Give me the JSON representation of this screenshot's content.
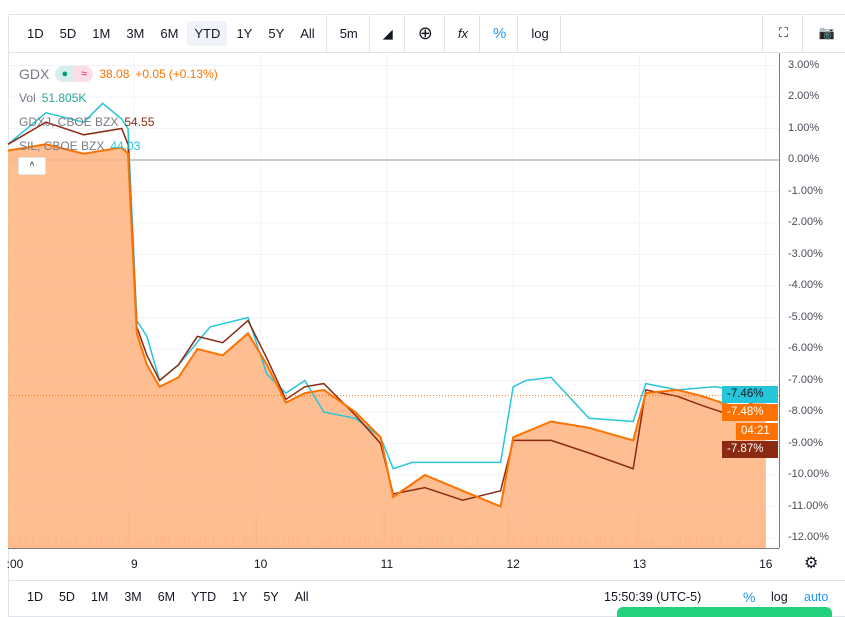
{
  "toolbar": {
    "ranges": [
      "1D",
      "5D",
      "1M",
      "3M",
      "6M",
      "YTD",
      "1Y",
      "5Y",
      "All"
    ],
    "active_range": "YTD",
    "interval": "5m",
    "chart_type_icon": "area-chart-icon",
    "compare_icon": "add-circle-icon",
    "indicators_icon": "fx-icon",
    "percent_label": "%",
    "log_label": "log",
    "fullscreen_icon": "fullscreen-icon",
    "snapshot_icon": "camera-icon"
  },
  "legend": {
    "symbol": "GDX",
    "price": "38.08",
    "change": "+0.05",
    "change_pct": "(+0.13%)",
    "vol_label": "Vol",
    "vol_value": "51.805K",
    "compare": [
      {
        "name": "GDXJ, CBOE BZX",
        "value": "54.55",
        "color": "#8b2a10"
      },
      {
        "name": "SIL, CBOE BZX",
        "value": "44.03",
        "color": "#26c6da"
      }
    ]
  },
  "colors": {
    "gdx": "#ff7200",
    "gdxj": "#8b2a10",
    "sil": "#26c6da",
    "area": "#ffb27f"
  },
  "chart_data": {
    "type": "line",
    "y_axis": {
      "unit": "%",
      "ticks": [
        "3.00%",
        "2.00%",
        "1.00%",
        "0.00%",
        "-1.00%",
        "-2.00%",
        "-3.00%",
        "-4.00%",
        "-5.00%",
        "-6.00%",
        "-7.00%",
        "-8.00%",
        "-9.00%",
        "-10.00%",
        "-11.00%",
        "-12.00%"
      ],
      "range": [
        -12.5,
        3.2
      ]
    },
    "x_axis": {
      "ticks": [
        ":00",
        "9",
        "10",
        "11",
        "12",
        "13",
        "16"
      ]
    },
    "series": [
      {
        "name": "GDX",
        "x": [
          0,
          0.3,
          0.6,
          0.9,
          0.95,
          1.02,
          1.1,
          1.2,
          1.35,
          1.5,
          1.7,
          1.9,
          2.05,
          2.2,
          2.35,
          2.5,
          2.75,
          2.95,
          3.05,
          3.3,
          3.6,
          3.9,
          4.0,
          4.3,
          4.6,
          4.95,
          5.05,
          5.3,
          5.5,
          5.8,
          6.0
        ],
        "y": [
          0.3,
          0.5,
          0.2,
          0.4,
          0.2,
          -5.5,
          -6.5,
          -7.2,
          -6.9,
          -6.0,
          -6.2,
          -5.5,
          -6.5,
          -7.7,
          -7.4,
          -7.3,
          -8.0,
          -8.8,
          -10.7,
          -10.0,
          -10.5,
          -11.0,
          -8.8,
          -8.3,
          -8.5,
          -8.9,
          -7.4,
          -7.3,
          -7.5,
          -7.9,
          -7.48
        ]
      },
      {
        "name": "GDXJ",
        "x": [
          0,
          0.3,
          0.6,
          0.9,
          0.95,
          1.02,
          1.1,
          1.2,
          1.35,
          1.5,
          1.7,
          1.9,
          2.05,
          2.2,
          2.35,
          2.5,
          2.75,
          2.95,
          3.05,
          3.3,
          3.6,
          3.9,
          4.0,
          4.3,
          4.6,
          4.95,
          5.05,
          5.3,
          5.5,
          5.8,
          6.0
        ],
        "y": [
          0.5,
          1.2,
          0.8,
          1.0,
          0.5,
          -5.3,
          -6.2,
          -7.0,
          -6.5,
          -5.6,
          -5.8,
          -5.1,
          -6.3,
          -7.6,
          -7.2,
          -7.1,
          -8.1,
          -9.0,
          -10.6,
          -10.4,
          -10.8,
          -10.5,
          -8.9,
          -8.9,
          -9.3,
          -9.8,
          -7.3,
          -7.5,
          -7.8,
          -8.2,
          -7.87
        ]
      },
      {
        "name": "SIL",
        "x": [
          0,
          0.3,
          0.6,
          0.75,
          0.9,
          0.95,
          1.02,
          1.1,
          1.2,
          1.35,
          1.6,
          1.9,
          2.05,
          2.2,
          2.35,
          2.5,
          2.75,
          2.95,
          3.05,
          3.2,
          3.5,
          3.9,
          4.0,
          4.1,
          4.3,
          4.6,
          4.95,
          5.05,
          5.3,
          5.6,
          6.0
        ],
        "y": [
          0.5,
          1.5,
          1.2,
          1.8,
          1.3,
          1.0,
          -5.1,
          -5.6,
          -7.0,
          -6.5,
          -5.3,
          -5.0,
          -6.8,
          -7.4,
          -7.0,
          -8.0,
          -8.2,
          -8.8,
          -9.8,
          -9.6,
          -9.6,
          -9.6,
          -7.2,
          -7.0,
          -6.9,
          -8.2,
          -8.3,
          -7.1,
          -7.3,
          -7.2,
          -7.46
        ]
      }
    ],
    "last_labels": [
      "-7.46%",
      "-7.48%",
      "-7.87%"
    ],
    "countdown": "04:21"
  },
  "bottom": {
    "ranges": [
      "1D",
      "5D",
      "1M",
      "3M",
      "6M",
      "YTD",
      "1Y",
      "5Y",
      "All"
    ],
    "time": "15:50:39 (UTC-5)",
    "percent": "%",
    "log": "log",
    "auto": "auto"
  }
}
